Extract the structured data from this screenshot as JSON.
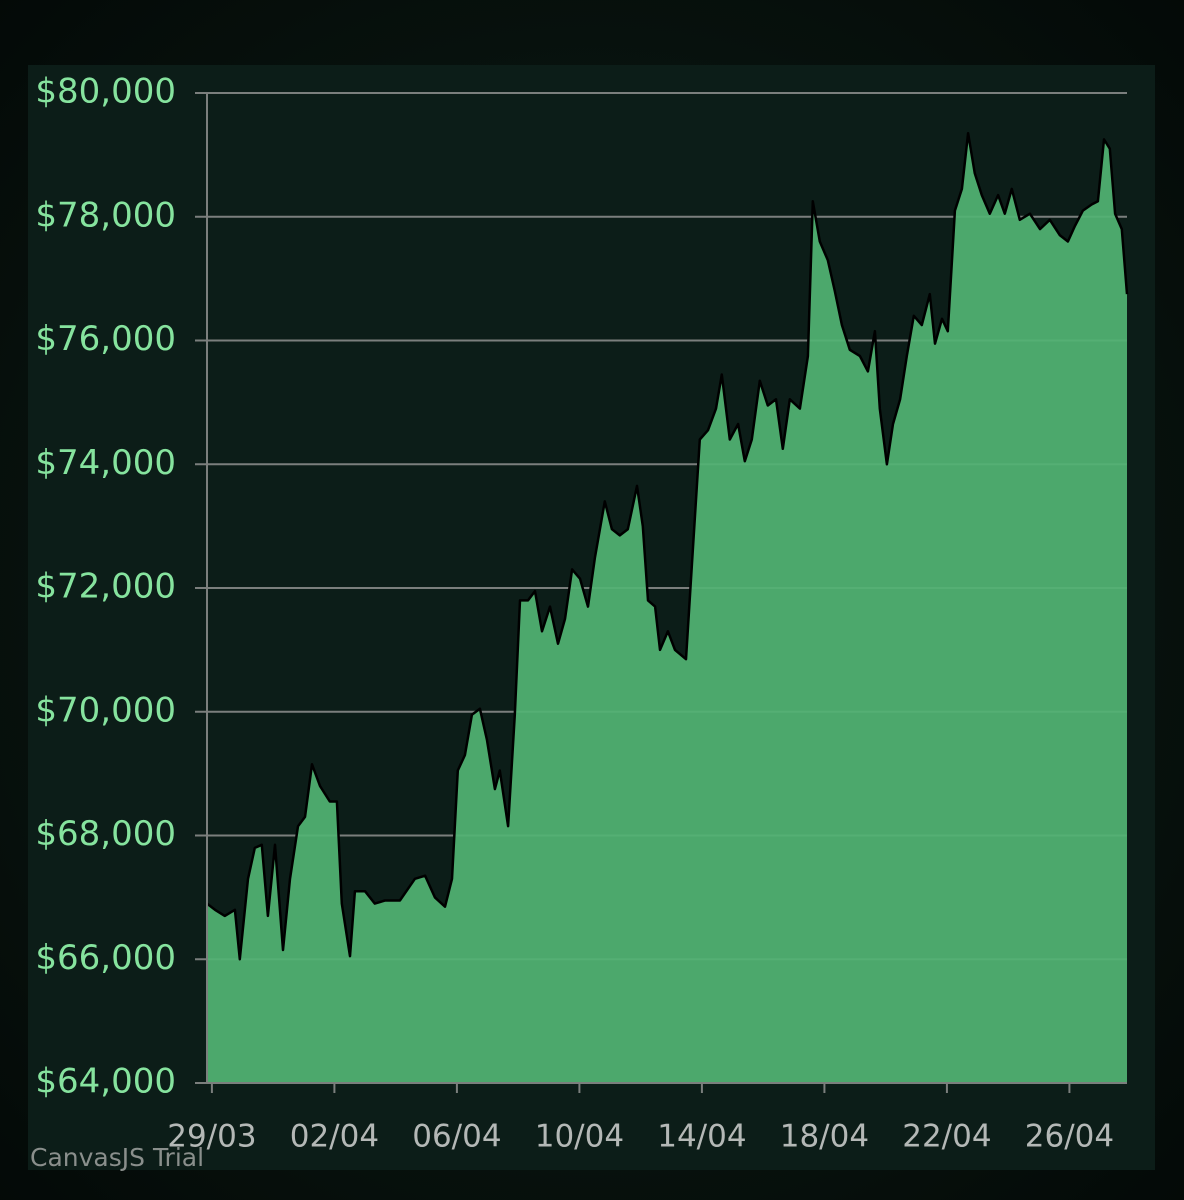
{
  "chart_data": {
    "type": "area",
    "x": [
      -0.16,
      0.1,
      0.42,
      0.75,
      0.91,
      1.18,
      1.4,
      1.63,
      1.83,
      2.06,
      2.32,
      2.55,
      2.81,
      3.04,
      3.27,
      3.53,
      3.85,
      4.08,
      4.24,
      4.51,
      4.67,
      5.0,
      5.32,
      5.65,
      6.14,
      6.63,
      6.96,
      7.28,
      7.61,
      7.84,
      8.03,
      8.26,
      8.49,
      8.75,
      8.98,
      9.24,
      9.4,
      9.67,
      9.89,
      10.06,
      10.32,
      10.55,
      10.78,
      11.04,
      11.3,
      11.53,
      11.76,
      12.02,
      12.28,
      12.51,
      12.83,
      13.06,
      13.32,
      13.58,
      13.88,
      14.07,
      14.24,
      14.47,
      14.63,
      14.89,
      15.12,
      15.48,
      15.67,
      15.93,
      16.2,
      16.46,
      16.65,
      16.91,
      17.18,
      17.4,
      17.63,
      17.89,
      18.15,
      18.42,
      18.64,
      18.87,
      19.2,
      19.46,
      19.62,
      19.85,
      20.11,
      20.34,
      20.57,
      20.83,
      21.16,
      21.42,
      21.65,
      21.81,
      22.04,
      22.24,
      22.47,
      22.69,
      22.92,
      23.18,
      23.44,
      23.61,
      23.84,
      24.03,
      24.26,
      24.49,
      24.69,
      24.91,
      25.14,
      25.4,
      25.67,
      25.89,
      26.12,
      26.38,
      26.71,
      27.04,
      27.36,
      27.69,
      27.95,
      28.18,
      28.44,
      28.73,
      28.93,
      29.13,
      29.32,
      29.49,
      29.71,
      29.88
    ],
    "values": [
      66900,
      66800,
      66700,
      66800,
      66000,
      67300,
      67800,
      67850,
      66700,
      67850,
      66150,
      67300,
      68150,
      68300,
      69150,
      68800,
      68550,
      68550,
      66900,
      66050,
      67100,
      67100,
      66900,
      66950,
      66950,
      67300,
      67350,
      67000,
      66850,
      67300,
      69050,
      69300,
      69950,
      70050,
      69550,
      68750,
      69050,
      68150,
      69950,
      71800,
      71800,
      71950,
      71300,
      71700,
      71100,
      71500,
      72300,
      72150,
      71700,
      72500,
      73400,
      72950,
      72850,
      72950,
      73650,
      73000,
      71800,
      71700,
      71000,
      71300,
      71000,
      70850,
      72350,
      74400,
      74550,
      74900,
      75450,
      74400,
      74650,
      74050,
      74400,
      75350,
      74950,
      75050,
      74250,
      75050,
      74900,
      75750,
      78250,
      77600,
      77300,
      76800,
      76250,
      75850,
      75750,
      75500,
      76150,
      74900,
      74000,
      74650,
      75050,
      75750,
      76400,
      76250,
      76750,
      75950,
      76350,
      76150,
      78100,
      78450,
      79350,
      78700,
      78350,
      78050,
      78350,
      78050,
      78450,
      77950,
      78050,
      77800,
      77950,
      77700,
      77600,
      77850,
      78100,
      78200,
      78250,
      79250,
      79100,
      78050,
      77800,
      76750
    ],
    "color": "#52b373",
    "line_color": "#000000",
    "xlim": [
      -0.16,
      29.88
    ],
    "xticks": [
      {
        "value": 0,
        "label": "29/03"
      },
      {
        "value": 4,
        "label": "02/04"
      },
      {
        "value": 8,
        "label": "06/04"
      },
      {
        "value": 12,
        "label": "10/04"
      },
      {
        "value": 16,
        "label": "14/04"
      },
      {
        "value": 20,
        "label": "18/04"
      },
      {
        "value": 24,
        "label": "22/04"
      },
      {
        "value": 28,
        "label": "26/04"
      }
    ],
    "ylim": [
      64000,
      80000
    ],
    "yticks": [
      {
        "value": 64000,
        "label": "$64,000"
      },
      {
        "value": 66000,
        "label": "$66,000"
      },
      {
        "value": 68000,
        "label": "$68,000"
      },
      {
        "value": 70000,
        "label": "$70,000"
      },
      {
        "value": 72000,
        "label": "$72,000"
      },
      {
        "value": 74000,
        "label": "$74,000"
      },
      {
        "value": 76000,
        "label": "$76,000"
      },
      {
        "value": 78000,
        "label": "$78,000"
      },
      {
        "value": 80000,
        "label": "$80,000"
      }
    ],
    "grid": true,
    "watermark": "CanvasJS Trial"
  }
}
